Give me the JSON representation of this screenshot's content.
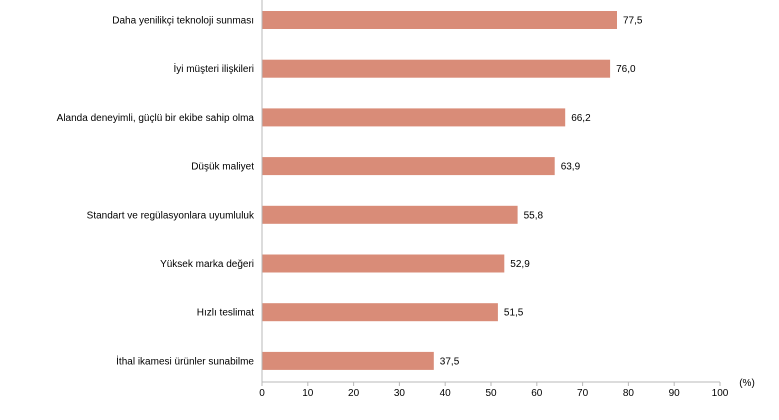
{
  "chart_data": {
    "type": "bar",
    "orientation": "horizontal",
    "categories": [
      "Daha yenilikçi teknoloji sunması",
      "İyi müşteri ilişkileri",
      "Alanda deneyimli, güçlü bir ekibe sahip olma",
      "Düşük maliyet",
      "Standart ve regülasyonlara uyumluluk",
      "Yüksek marka değeri",
      "Hızlı teslimat",
      "İthal ikamesi ürünler sunabilme"
    ],
    "values": [
      77.5,
      76.0,
      66.2,
      63.9,
      55.8,
      52.9,
      51.5,
      37.5
    ],
    "value_labels": [
      "77,5",
      "76,0",
      "66,2",
      "63,9",
      "55,8",
      "52,9",
      "51,5",
      "37,5"
    ],
    "xlim": [
      0,
      100
    ],
    "xticks": [
      0,
      10,
      20,
      30,
      40,
      50,
      60,
      70,
      80,
      90,
      100
    ],
    "xunit": "(%)",
    "bar_color": "#d98c78",
    "axis_color": "#b8b8b8",
    "grid": false,
    "legend": "none"
  }
}
